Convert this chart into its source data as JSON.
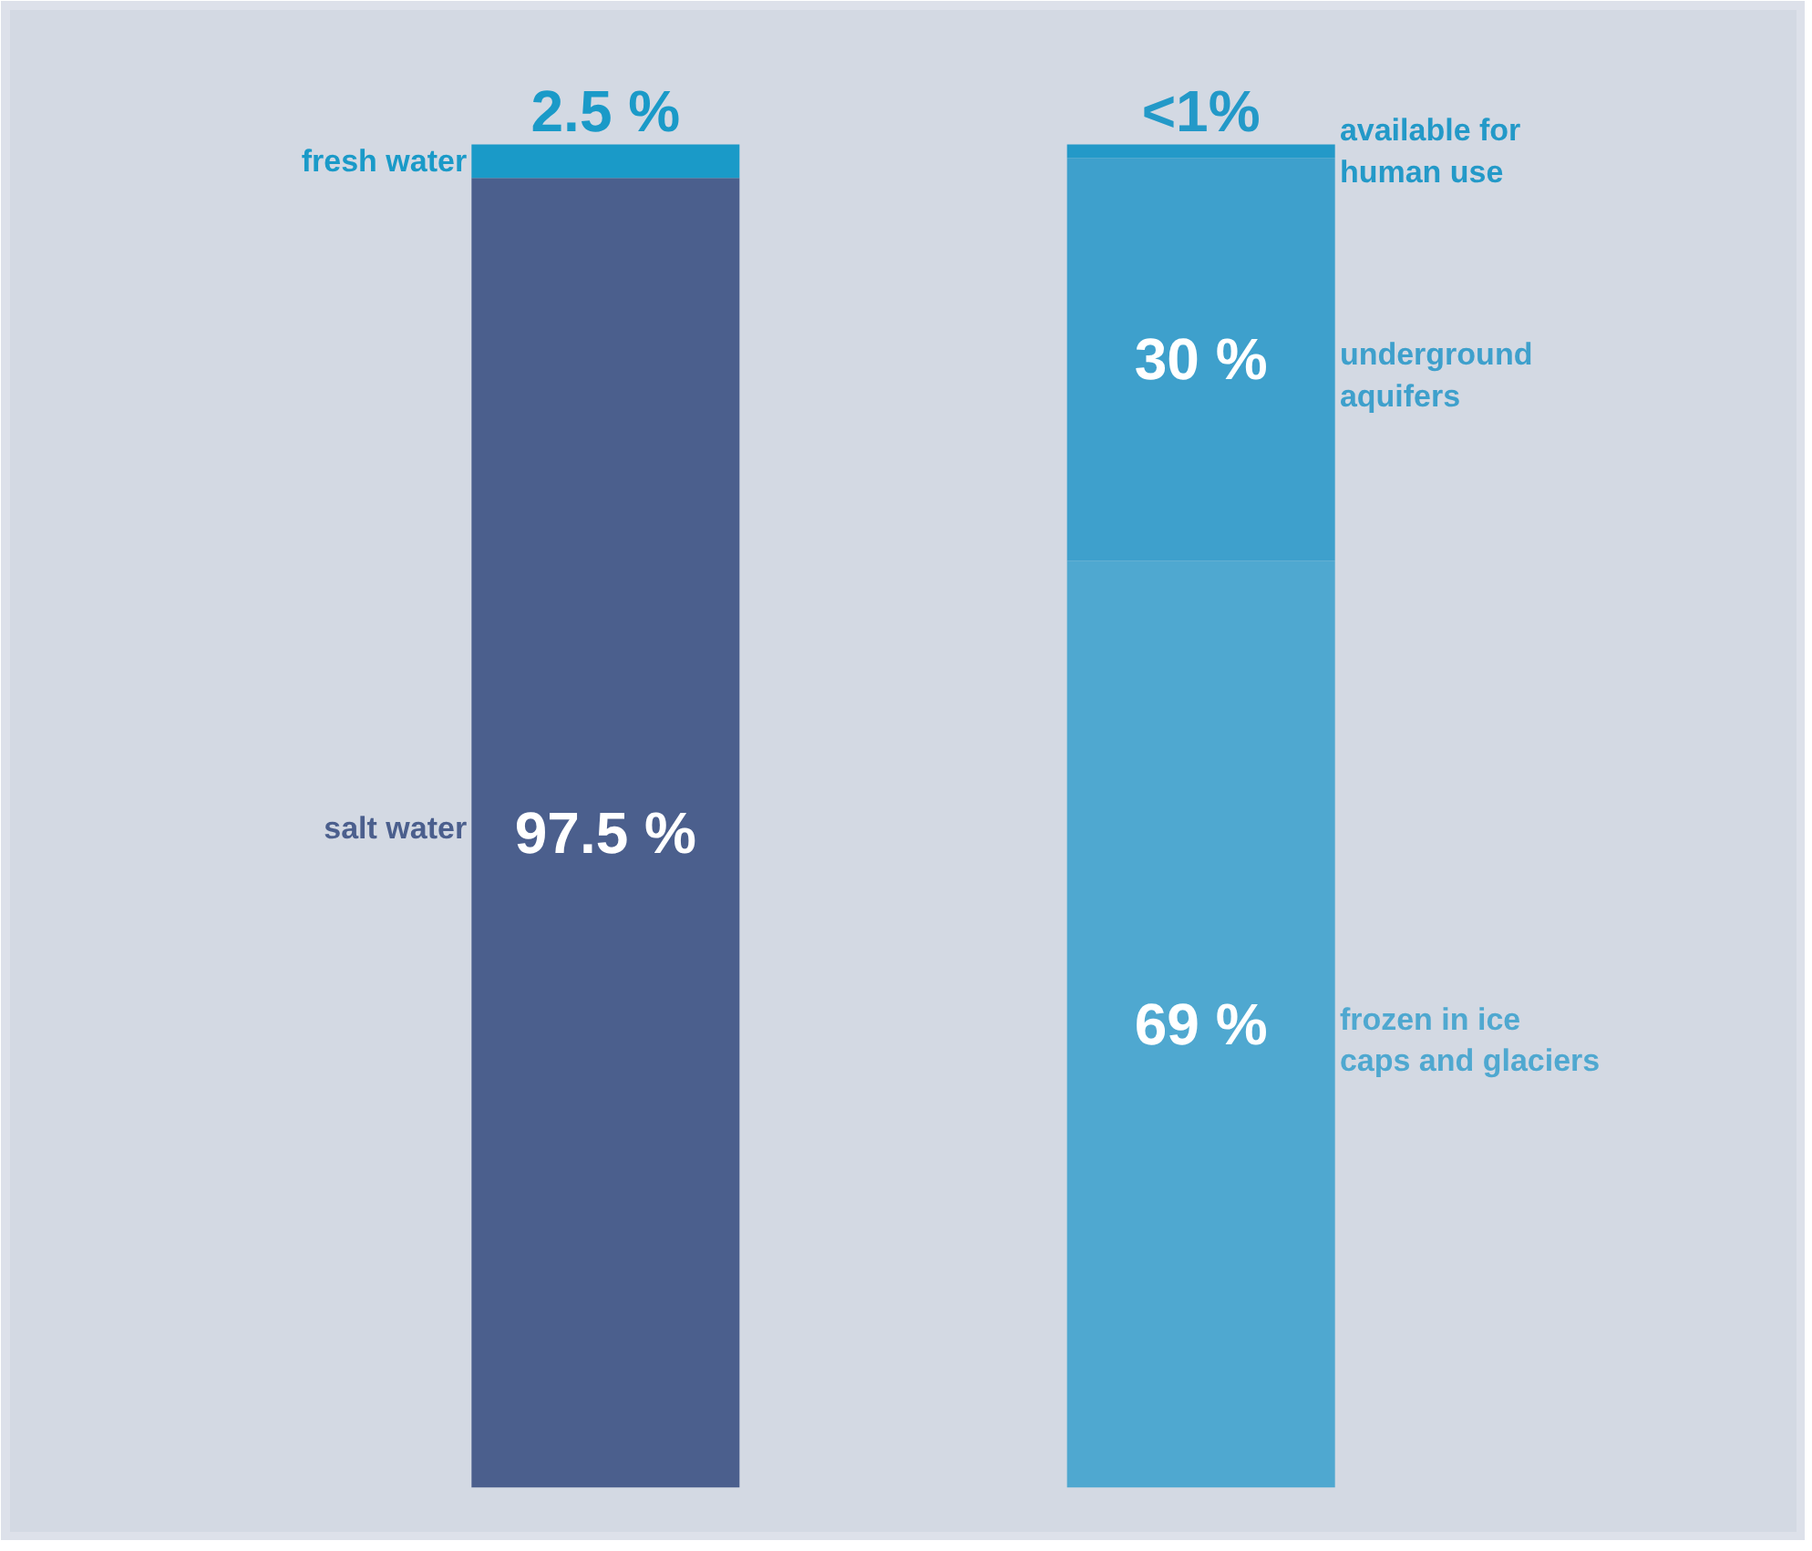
{
  "chart_data": {
    "type": "bar",
    "stacked": true,
    "categories": [
      null,
      null
    ],
    "tick_labels": false,
    "grid": false,
    "series": [
      {
        "name": "salt water",
        "color": "#4b5f8d",
        "values": [
          97.5,
          null
        ],
        "value_labels": [
          "97.5 %",
          null
        ]
      },
      {
        "name": "fresh water",
        "color": "#1a9ac8",
        "values": [
          2.5,
          null
        ],
        "value_labels": [
          "2.5 %",
          null
        ]
      },
      {
        "name": "frozen in ice\ncaps and glaciers",
        "color": "#4fa8d0",
        "values": [
          null,
          69
        ],
        "value_labels": [
          null,
          "69 %"
        ]
      },
      {
        "name": "underground\naquifers",
        "color": "#3ea0cc",
        "values": [
          null,
          30
        ],
        "value_labels": [
          null,
          "30 %"
        ]
      },
      {
        "name": "available for\nhuman use",
        "color": "#2399c8",
        "values": [
          null,
          1
        ],
        "value_labels": [
          null,
          "<1%"
        ]
      }
    ]
  }
}
